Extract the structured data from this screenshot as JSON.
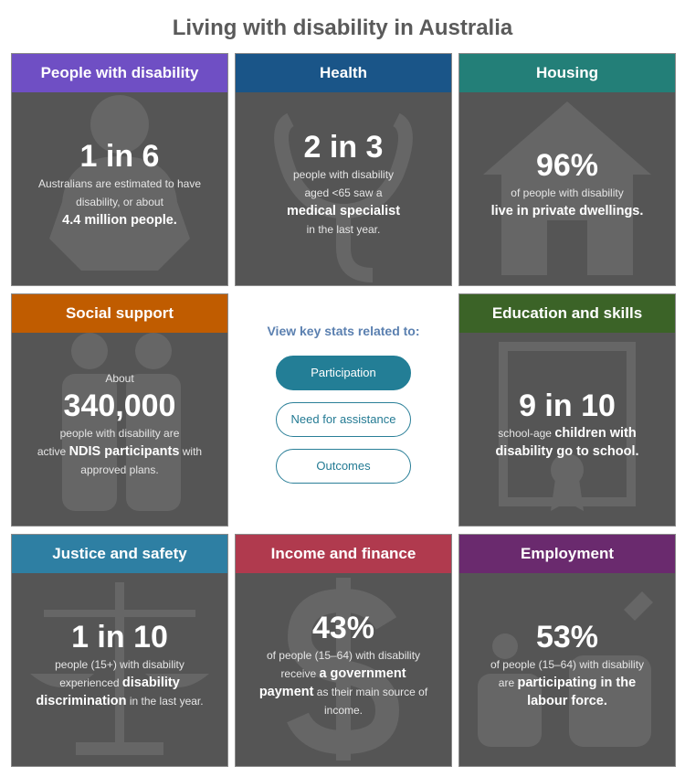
{
  "title": "Living with disability in Australia",
  "center": {
    "prompt": "View key stats related to:",
    "buttons": [
      {
        "label": "Participation",
        "selected": true
      },
      {
        "label": "Need for assistance",
        "selected": false
      },
      {
        "label": "Outcomes",
        "selected": false
      }
    ]
  },
  "tiles": [
    {
      "heading": "People with disability",
      "color": "#6f4fc4",
      "icon": "person-icon",
      "pre": "",
      "stat": "1 in 6",
      "lines": [
        [
          {
            "t": "Australians are estimated to have"
          }
        ],
        [
          {
            "t": "disability, or about"
          }
        ],
        [
          {
            "t": "4.4 million people.",
            "b": true
          }
        ]
      ]
    },
    {
      "heading": "Health",
      "color": "#1a5588",
      "icon": "stethoscope-icon",
      "pre": "",
      "stat": "2 in 3",
      "lines": [
        [
          {
            "t": "people with disability"
          }
        ],
        [
          {
            "t": "aged <65 saw a"
          }
        ],
        [
          {
            "t": "medical specialist",
            "b": true
          }
        ],
        [
          {
            "t": "in the last year."
          }
        ]
      ]
    },
    {
      "heading": "Housing",
      "color": "#237f78",
      "icon": "house-icon",
      "pre": "",
      "stat": "96%",
      "lines": [
        [
          {
            "t": "of people with disability"
          }
        ],
        [
          {
            "t": "live in private dwellings.",
            "b": true
          }
        ]
      ]
    },
    {
      "heading": "Social support",
      "color": "#c05c00",
      "icon": "people-icon",
      "pre": "About",
      "stat": "340,000",
      "lines": [
        [
          {
            "t": "people with disability are"
          }
        ],
        [
          {
            "t": "active "
          },
          {
            "t": "NDIS participants",
            "b": true
          },
          {
            "t": " with"
          }
        ],
        [
          {
            "t": "approved plans."
          }
        ]
      ]
    },
    {
      "heading": "Education and skills",
      "color": "#3b6327",
      "icon": "certificate-icon",
      "pre": "",
      "stat": "9 in 10",
      "lines": [
        [
          {
            "t": "school-age "
          },
          {
            "t": "children with",
            "b": true
          }
        ],
        [
          {
            "t": "disability go to school.",
            "b": true
          }
        ]
      ]
    },
    {
      "heading": "Justice and safety",
      "color": "#2e7fa3",
      "icon": "scales-icon",
      "pre": "",
      "stat": "1 in 10",
      "lines": [
        [
          {
            "t": "people (15+) with disability"
          }
        ],
        [
          {
            "t": "experienced "
          },
          {
            "t": "disability",
            "b": true
          }
        ],
        [
          {
            "t": "discrimination",
            "b": true
          },
          {
            "t": " in the last year."
          }
        ]
      ]
    },
    {
      "heading": "Income and finance",
      "color": "#b03a4e",
      "icon": "dollar-icon",
      "pre": "",
      "stat": "43%",
      "lines": [
        [
          {
            "t": "of people (15–64) with disability"
          }
        ],
        [
          {
            "t": "receive "
          },
          {
            "t": "a government",
            "b": true
          }
        ],
        [
          {
            "t": "payment",
            "b": true
          },
          {
            "t": " as their main source of"
          }
        ],
        [
          {
            "t": "income."
          }
        ]
      ]
    },
    {
      "heading": "Employment",
      "color": "#6a2a6e",
      "icon": "tools-icon",
      "pre": "",
      "stat": "53%",
      "lines": [
        [
          {
            "t": "of people (15–64) with disability"
          }
        ],
        [
          {
            "t": "are "
          },
          {
            "t": "participating in the",
            "b": true
          }
        ],
        [
          {
            "t": "labour force.",
            "b": true
          }
        ]
      ]
    }
  ]
}
